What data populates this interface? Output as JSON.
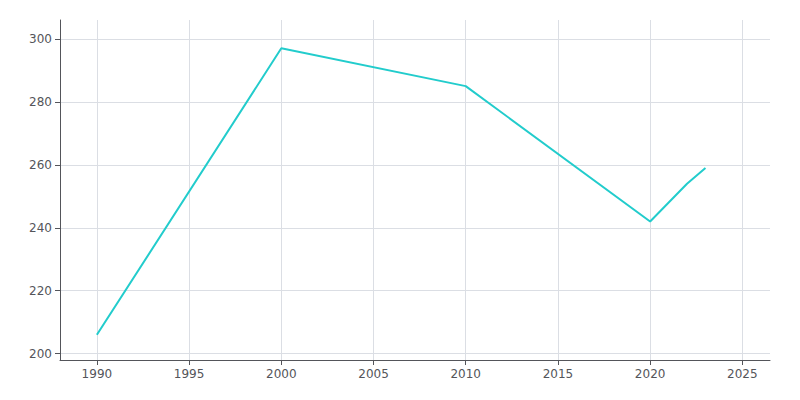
{
  "chart_data": {
    "type": "line",
    "x": [
      1990,
      2000,
      2010,
      2020,
      2022,
      2023
    ],
    "values": [
      206,
      297,
      285,
      242,
      254,
      259
    ],
    "color": "#22cccc",
    "xlim": [
      1988,
      2026.5
    ],
    "ylim": [
      198,
      306
    ],
    "xticks": [
      1990,
      1995,
      2000,
      2005,
      2010,
      2015,
      2020,
      2025
    ],
    "yticks": [
      200,
      220,
      240,
      260,
      280,
      300
    ],
    "grid": true
  }
}
